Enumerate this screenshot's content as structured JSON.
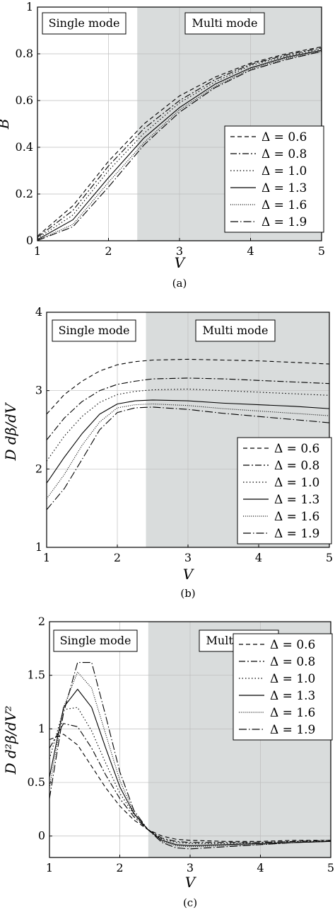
{
  "chart_data": [
    {
      "id": "a",
      "type": "line",
      "caption": "(a)",
      "xlabel": "V",
      "ylabel": "B",
      "xlim": [
        1,
        5
      ],
      "ylim": [
        0,
        1
      ],
      "xticks": [
        1,
        2,
        3,
        4,
        5
      ],
      "yticks": [
        0,
        0.2,
        0.4,
        0.6,
        0.8,
        1
      ],
      "ytick_labels": [
        "0",
        "0.2",
        "0.4",
        "0.6",
        "0.8",
        "1"
      ],
      "grid": true,
      "legend_position": "bottom-right",
      "regions": [
        {
          "label": "Single mode",
          "x_range": [
            1,
            2.405
          ],
          "shaded": false
        },
        {
          "label": "Multi mode",
          "x_range": [
            2.405,
            5
          ],
          "shaded": true,
          "color": "#d9dcdc"
        }
      ],
      "x": [
        1,
        1.5,
        2,
        2.5,
        3,
        3.5,
        4,
        4.5,
        5
      ],
      "series": [
        {
          "name": "Δ = 0.6",
          "dash": "dashed",
          "values": [
            0.02,
            0.15,
            0.34,
            0.5,
            0.62,
            0.7,
            0.76,
            0.8,
            0.83
          ]
        },
        {
          "name": "Δ = 0.8",
          "dash": "dashdot",
          "values": [
            0.015,
            0.13,
            0.32,
            0.48,
            0.6,
            0.69,
            0.755,
            0.795,
            0.825
          ]
        },
        {
          "name": "Δ = 1.0",
          "dash": "dotted",
          "values": [
            0.01,
            0.11,
            0.3,
            0.46,
            0.59,
            0.68,
            0.75,
            0.79,
            0.82
          ]
        },
        {
          "name": "Δ = 1.3",
          "dash": "solid",
          "values": [
            0.005,
            0.09,
            0.27,
            0.44,
            0.57,
            0.67,
            0.74,
            0.785,
            0.815
          ]
        },
        {
          "name": "Δ = 1.6",
          "dash": "densedot",
          "values": [
            0.002,
            0.07,
            0.25,
            0.42,
            0.56,
            0.66,
            0.735,
            0.78,
            0.81
          ]
        },
        {
          "name": "Δ = 1.9",
          "dash": "dashdot2",
          "values": [
            0.001,
            0.06,
            0.23,
            0.41,
            0.55,
            0.655,
            0.73,
            0.775,
            0.81
          ]
        }
      ]
    },
    {
      "id": "b",
      "type": "line",
      "caption": "(b)",
      "xlabel": "V",
      "ylabel": "D dβ/dV",
      "xlim": [
        1,
        5
      ],
      "ylim": [
        1,
        4
      ],
      "xticks": [
        1,
        2,
        3,
        4,
        5
      ],
      "yticks": [
        1,
        2,
        3,
        4
      ],
      "ytick_labels": [
        "1",
        "2",
        "3",
        "4"
      ],
      "grid": true,
      "legend_position": "bottom-right",
      "regions": [
        {
          "label": "Single mode",
          "x_range": [
            1,
            2.405
          ],
          "shaded": false
        },
        {
          "label": "Multi mode",
          "x_range": [
            2.405,
            5
          ],
          "shaded": true,
          "color": "#d9dcdc"
        }
      ],
      "x": [
        1,
        1.25,
        1.5,
        1.75,
        2,
        2.25,
        2.5,
        3,
        3.5,
        4,
        4.5,
        5
      ],
      "series": [
        {
          "name": "Δ = 0.6",
          "dash": "dashed",
          "values": [
            2.7,
            2.95,
            3.12,
            3.25,
            3.33,
            3.37,
            3.39,
            3.4,
            3.39,
            3.38,
            3.36,
            3.34
          ]
        },
        {
          "name": "Δ = 0.8",
          "dash": "dashdot",
          "values": [
            2.37,
            2.65,
            2.86,
            3.0,
            3.08,
            3.12,
            3.15,
            3.16,
            3.15,
            3.13,
            3.11,
            3.09
          ]
        },
        {
          "name": "Δ = 1.0",
          "dash": "dotted",
          "values": [
            2.1,
            2.42,
            2.67,
            2.85,
            2.95,
            2.99,
            3.01,
            3.02,
            3.0,
            2.98,
            2.96,
            2.94
          ]
        },
        {
          "name": "Δ = 1.3",
          "dash": "solid",
          "values": [
            1.82,
            2.15,
            2.45,
            2.7,
            2.83,
            2.87,
            2.88,
            2.87,
            2.84,
            2.82,
            2.8,
            2.77
          ]
        },
        {
          "name": "Δ = 1.6",
          "dash": "densedot",
          "values": [
            1.62,
            1.93,
            2.3,
            2.6,
            2.78,
            2.82,
            2.83,
            2.81,
            2.77,
            2.74,
            2.71,
            2.68
          ]
        },
        {
          "name": "Δ = 1.9",
          "dash": "dashdot2",
          "values": [
            1.48,
            1.75,
            2.12,
            2.5,
            2.72,
            2.78,
            2.79,
            2.76,
            2.71,
            2.67,
            2.63,
            2.59
          ]
        }
      ]
    },
    {
      "id": "c",
      "type": "line",
      "caption": "(c)",
      "xlabel": "V",
      "ylabel": "D d²β/dV²",
      "xlim": [
        1,
        5
      ],
      "ylim": [
        -0.2,
        2
      ],
      "xticks": [
        1,
        2,
        3,
        4,
        5
      ],
      "yticks": [
        0,
        0.5,
        1,
        1.5,
        2
      ],
      "ytick_labels": [
        "0",
        "0.5",
        "1",
        "1.5",
        "2"
      ],
      "grid": true,
      "legend_position": "top-right",
      "regions": [
        {
          "label": "Single mode",
          "x_range": [
            1,
            2.405
          ],
          "shaded": false
        },
        {
          "label": "Multi mode",
          "x_range": [
            2.405,
            5
          ],
          "shaded": true,
          "color": "#d9dcdc"
        }
      ],
      "x": [
        1,
        1.2,
        1.4,
        1.6,
        1.8,
        2,
        2.2,
        2.4,
        2.6,
        2.8,
        3,
        3.5,
        4,
        4.5,
        5
      ],
      "series": [
        {
          "name": "Δ = 0.6",
          "dash": "dashed",
          "values": [
            0.9,
            0.95,
            0.85,
            0.65,
            0.45,
            0.28,
            0.15,
            0.06,
            0.0,
            -0.03,
            -0.04,
            -0.05,
            -0.05,
            -0.04,
            -0.04
          ]
        },
        {
          "name": "Δ = 0.8",
          "dash": "dashdot",
          "values": [
            0.82,
            1.05,
            1.02,
            0.82,
            0.57,
            0.35,
            0.18,
            0.06,
            -0.02,
            -0.05,
            -0.06,
            -0.06,
            -0.06,
            -0.05,
            -0.04
          ]
        },
        {
          "name": "Δ = 1.0",
          "dash": "dotted",
          "values": [
            0.72,
            1.18,
            1.2,
            0.98,
            0.68,
            0.4,
            0.2,
            0.06,
            -0.03,
            -0.06,
            -0.07,
            -0.07,
            -0.06,
            -0.05,
            -0.05
          ]
        },
        {
          "name": "Δ = 1.3",
          "dash": "solid",
          "values": [
            0.55,
            1.2,
            1.37,
            1.2,
            0.82,
            0.46,
            0.21,
            0.06,
            -0.04,
            -0.08,
            -0.09,
            -0.08,
            -0.07,
            -0.06,
            -0.05
          ]
        },
        {
          "name": "Δ = 1.6",
          "dash": "densedot",
          "values": [
            0.45,
            1.2,
            1.53,
            1.38,
            0.95,
            0.52,
            0.22,
            0.06,
            -0.05,
            -0.09,
            -0.1,
            -0.09,
            -0.08,
            -0.06,
            -0.05
          ]
        },
        {
          "name": "Δ = 1.9",
          "dash": "dashdot2",
          "values": [
            0.35,
            1.15,
            1.62,
            1.62,
            1.12,
            0.6,
            0.24,
            0.06,
            -0.06,
            -0.11,
            -0.12,
            -0.1,
            -0.08,
            -0.06,
            -0.05
          ]
        }
      ]
    }
  ]
}
